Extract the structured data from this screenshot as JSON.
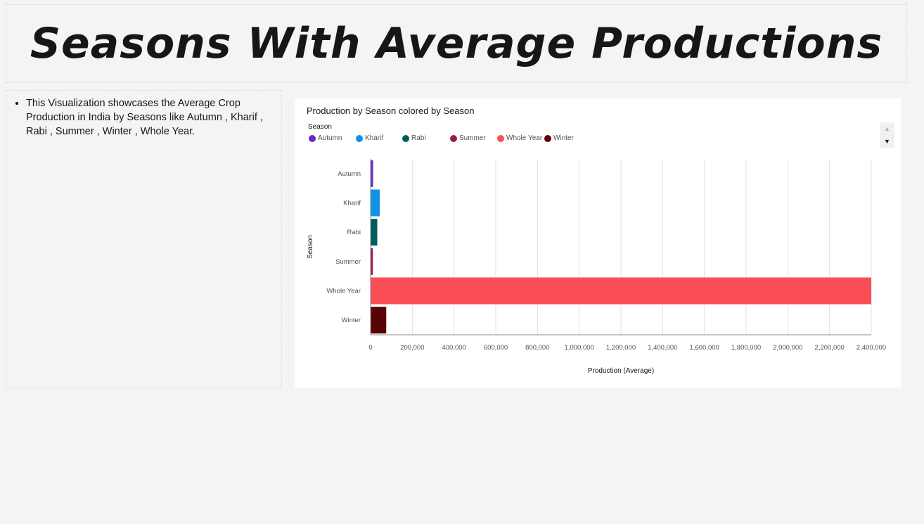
{
  "page": {
    "title": "Seasons With Average Productions",
    "description": "This Visualization showcases the Average Crop Production in India by Seasons like Autumn , Kharif , Rabi , Summer , Winter , Whole Year."
  },
  "legend": {
    "title": "Season",
    "items": [
      {
        "label": "Autumn",
        "color": "#6929c4"
      },
      {
        "label": "Kharif",
        "color": "#1192e8"
      },
      {
        "label": "Rabi",
        "color": "#005d5d"
      },
      {
        "label": "Summer",
        "color": "#9f1853"
      },
      {
        "label": "Whole Year",
        "color": "#fa4d56"
      },
      {
        "label": "Winter",
        "color": "#570408"
      }
    ],
    "scroll_up_icon": "triangle-up-icon",
    "scroll_down_icon": "triangle-down-icon"
  },
  "chart_data": {
    "type": "bar",
    "orientation": "horizontal",
    "title": "Production by Season colored by Season",
    "xlabel": "Production (Average)",
    "ylabel": "Season",
    "categories": [
      "Autumn",
      "Kharif",
      "Rabi",
      "Summer",
      "Whole Year",
      "Winter"
    ],
    "values": [
      12000,
      44000,
      32000,
      11000,
      2400000,
      75000
    ],
    "colors": [
      "#6929c4",
      "#1192e8",
      "#005d5d",
      "#9f1853",
      "#fa4d56",
      "#570408"
    ],
    "xlim": [
      0,
      2400000
    ],
    "xticks": [
      0,
      200000,
      400000,
      600000,
      800000,
      1000000,
      1200000,
      1400000,
      1600000,
      1800000,
      2000000,
      2200000,
      2400000
    ],
    "xtick_labels": [
      "0",
      "200,000",
      "400,000",
      "600,000",
      "800,000",
      "1,000,000",
      "1,200,000",
      "1,400,000",
      "1,600,000",
      "1,800,000",
      "2,000,000",
      "2,200,000",
      "2,400,000"
    ],
    "grid": true,
    "legend_position": "top-left"
  }
}
